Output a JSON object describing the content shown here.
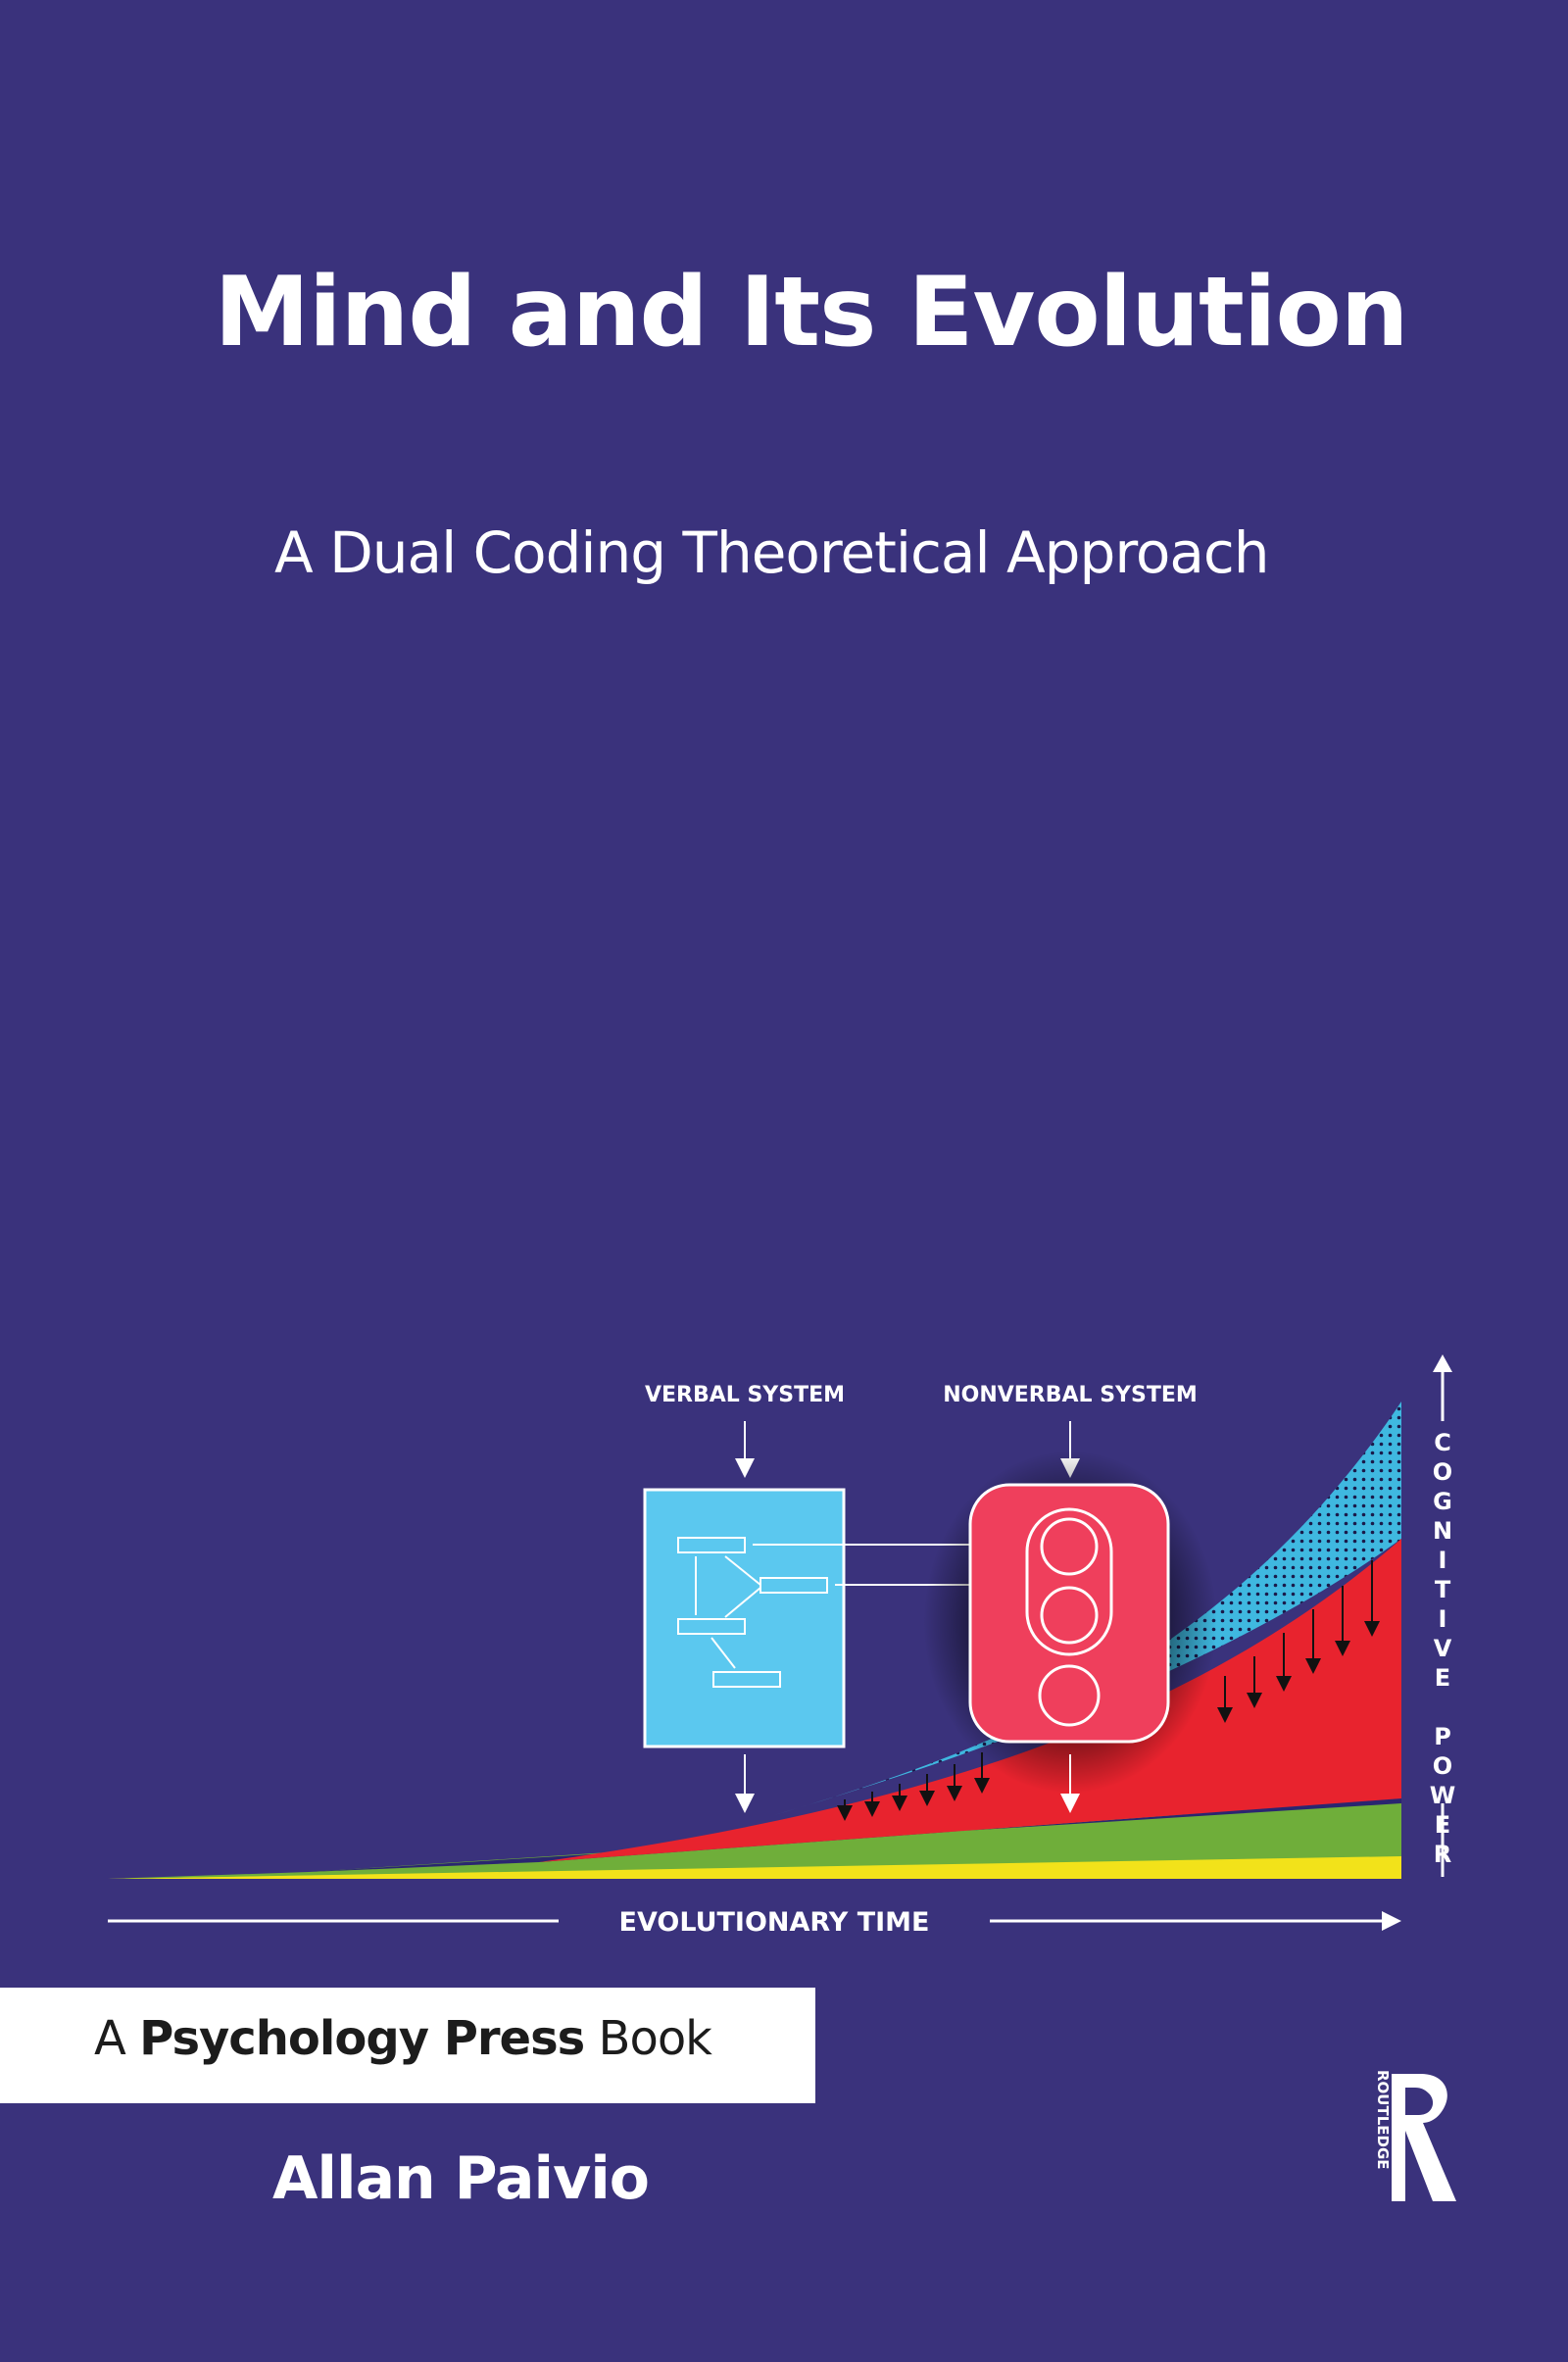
{
  "cover": {
    "title": "Mind and Its Evolution",
    "subtitle": "A Dual Coding Theoretical Approach",
    "author": "Allan Paivio"
  },
  "illustration": {
    "verbal_label": "VERBAL SYSTEM",
    "nonverbal_label": "NONVERBAL SYSTEM",
    "x_axis_label": "EVOLUTIONARY TIME",
    "y_axis_label": "COGNITIVE POWER"
  },
  "publisher": {
    "prefix": "A",
    "name": "Psychology Press",
    "suffix": "Book",
    "imprint_logo_text": "ROUTLEDGE"
  },
  "colors": {
    "background": "#3a327c",
    "verbal_box": "#5bc8ef",
    "nonverbal_box": "#ef3f5c",
    "red_area": "#e8232e",
    "cyan_area": "#3fb8e0",
    "green_band": "#6fae3a",
    "yellow_band": "#f2e21a"
  }
}
